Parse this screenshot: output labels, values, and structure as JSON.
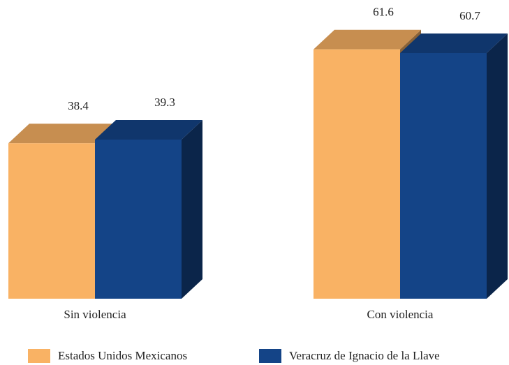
{
  "chart_data": {
    "type": "bar3d",
    "categories": [
      "Sin violencia",
      "Con violencia"
    ],
    "series": [
      {
        "name": "Estados Unidos Mexicanos",
        "color": "#f9b264",
        "values": [
          38.4,
          61.6
        ]
      },
      {
        "name": "Veracruz de Ignacio de la Llave",
        "color": "#144487",
        "values": [
          39.3,
          60.7
        ]
      }
    ]
  }
}
